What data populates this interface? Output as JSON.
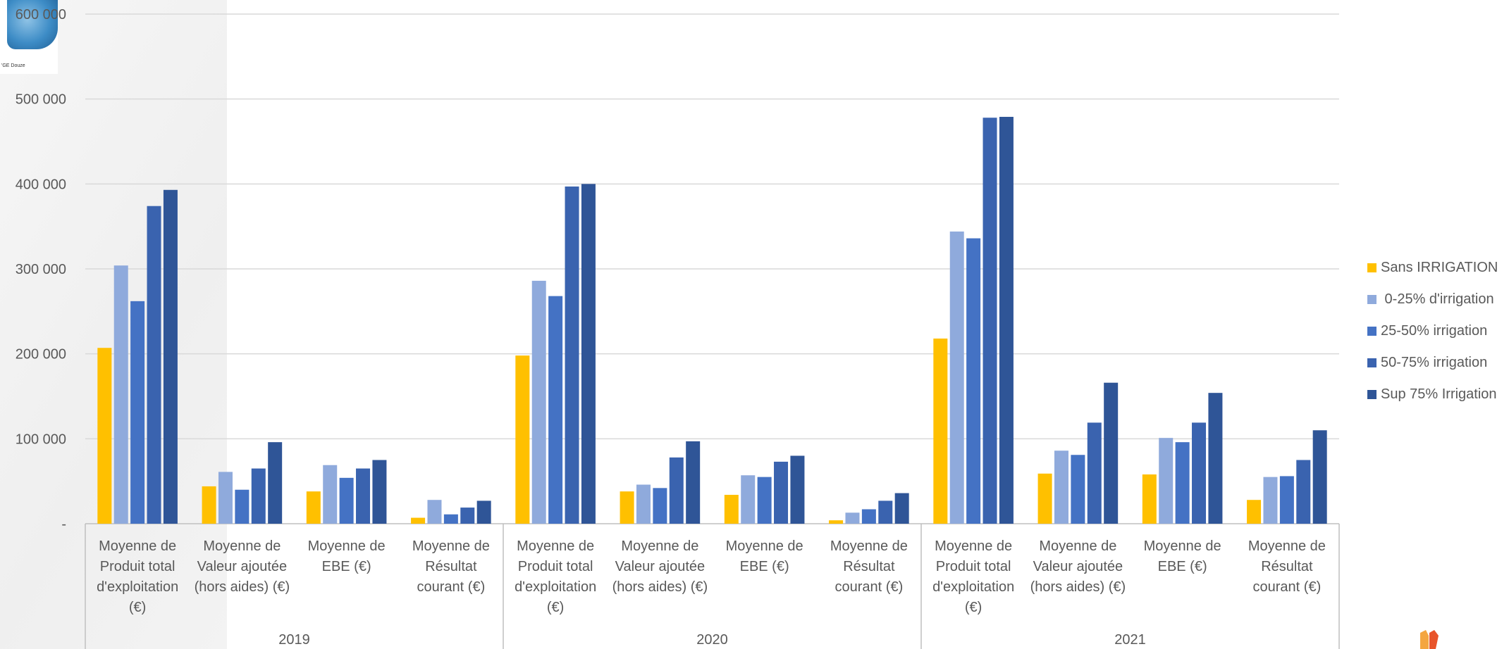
{
  "thumbnail": {
    "caption": "'GE Douze"
  },
  "chart_data": {
    "type": "bar",
    "title": "",
    "xlabel": "",
    "ylabel": "",
    "ylim": [
      0,
      600000
    ],
    "yticks": [
      {
        "value": 0,
        "label": "-"
      },
      {
        "value": 100000,
        "label": "100 000"
      },
      {
        "value": 200000,
        "label": "200 000"
      },
      {
        "value": 300000,
        "label": "300 000"
      },
      {
        "value": 400000,
        "label": "400 000"
      },
      {
        "value": 500000,
        "label": "500 000"
      },
      {
        "value": 600000,
        "label": "600 000"
      }
    ],
    "grid": true,
    "legend_position": "right",
    "groups": [
      "2019",
      "2020",
      "2021"
    ],
    "categories": [
      "Moyenne de Produit total d'exploitation (€)",
      "Moyenne de Valeur ajoutée (hors aides) (€)",
      "Moyenne de EBE (€)",
      "Moyenne de Résultat courant (€)",
      "Moyenne de Produit total d'exploitation (€)",
      "Moyenne de Valeur ajoutée (hors aides) (€)",
      "Moyenne de EBE (€)",
      "Moyenne de Résultat courant (€)",
      "Moyenne de Produit total d'exploitation (€)",
      "Moyenne de Valeur ajoutée (hors aides) (€)",
      "Moyenne de EBE (€)",
      "Moyenne de Résultat courant (€)"
    ],
    "category_lines": [
      [
        "Moyenne de",
        "Produit total",
        "d'exploitation",
        "(€)"
      ],
      [
        "Moyenne de",
        "Valeur ajoutée",
        "(hors aides) (€)"
      ],
      [
        "Moyenne de",
        "EBE (€)"
      ],
      [
        "Moyenne de",
        "Résultat",
        "courant (€)"
      ],
      [
        "Moyenne de",
        "Produit total",
        "d'exploitation",
        "(€)"
      ],
      [
        "Moyenne de",
        "Valeur ajoutée",
        "(hors aides) (€)"
      ],
      [
        "Moyenne de",
        "EBE (€)"
      ],
      [
        "Moyenne de",
        "Résultat",
        "courant (€)"
      ],
      [
        "Moyenne de",
        "Produit total",
        "d'exploitation",
        "(€)"
      ],
      [
        "Moyenne de",
        "Valeur ajoutée",
        "(hors aides) (€)"
      ],
      [
        "Moyenne de",
        "EBE (€)"
      ],
      [
        "Moyenne de",
        "Résultat",
        "courant (€)"
      ]
    ],
    "series": [
      {
        "name": "Sans IRRIGATION",
        "color": "#FFC000",
        "values": [
          207000,
          44000,
          38000,
          7000,
          198000,
          38000,
          34000,
          4000,
          218000,
          59000,
          58000,
          28000
        ]
      },
      {
        "name": " 0-25% d'irrigation",
        "color": "#8FAADC",
        "values": [
          304000,
          61000,
          69000,
          28000,
          286000,
          46000,
          57000,
          13000,
          344000,
          86000,
          101000,
          55000
        ]
      },
      {
        "name": "25-50% irrigation",
        "color": "#4472C4",
        "values": [
          262000,
          40000,
          54000,
          11000,
          268000,
          42000,
          55000,
          17000,
          336000,
          81000,
          96000,
          56000
        ]
      },
      {
        "name": "50-75% irrigation",
        "color": "#3A63AF",
        "values": [
          374000,
          65000,
          65000,
          19000,
          397000,
          78000,
          73000,
          27000,
          478000,
          119000,
          119000,
          75000
        ]
      },
      {
        "name": "Sup 75% Irrigation",
        "color": "#2F5597",
        "values": [
          393000,
          96000,
          75000,
          27000,
          400000,
          97000,
          80000,
          36000,
          479000,
          166000,
          154000,
          110000
        ]
      }
    ]
  }
}
